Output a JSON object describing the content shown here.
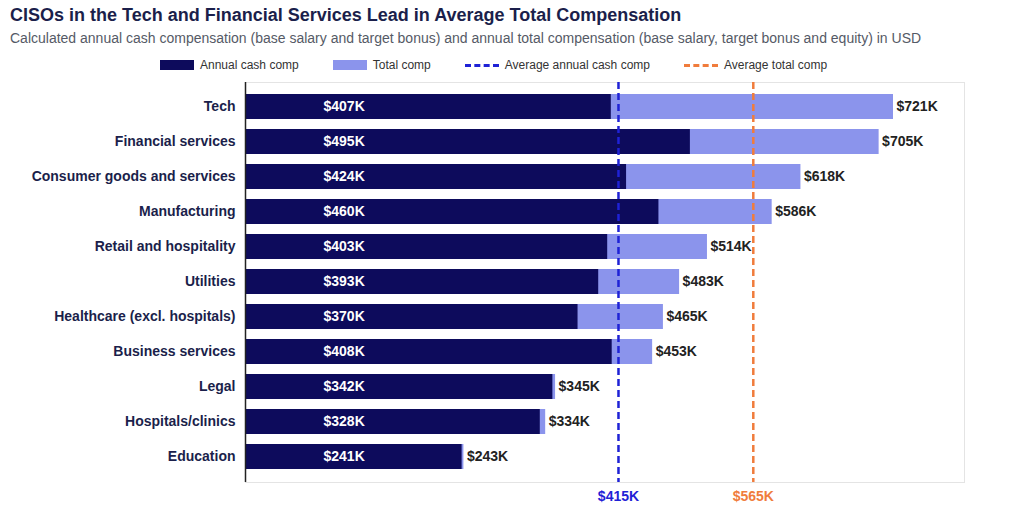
{
  "chart_data": {
    "type": "bar",
    "title": "CISOs in the Tech and Financial Services Lead in Average Total Compensation",
    "subtitle": "Calculated annual cash compensation (base salary and target bonus) and annual total compensation (base salary, target bonus and equity) in USD",
    "orientation": "horizontal",
    "stacked": false,
    "data_labels": true,
    "tick_labels": "y",
    "legend": "top",
    "categories": [
      "Tech",
      "Financial services",
      "Consumer goods and services",
      "Manufacturing",
      "Retail and hospitality",
      "Utilities",
      "Healthcare (excl. hospitals)",
      "Business services",
      "Legal",
      "Hospitals/clinics",
      "Education"
    ],
    "xlim": [
      0,
      800
    ],
    "series": [
      {
        "name": "Annual cash comp",
        "color": "#0d0b5c",
        "values": [
          407,
          495,
          424,
          460,
          403,
          393,
          370,
          408,
          342,
          328,
          241
        ],
        "value_labels": [
          "$407K",
          "$495K",
          "$424K",
          "$460K",
          "$403K",
          "$393K",
          "$370K",
          "$408K",
          "$342K",
          "$328K",
          "$241K"
        ]
      },
      {
        "name": "Total comp",
        "color": "#8b94ec",
        "values": [
          721,
          705,
          618,
          586,
          514,
          483,
          465,
          453,
          345,
          334,
          243
        ],
        "value_labels": [
          "$721K",
          "$705K",
          "$618K",
          "$586K",
          "$514K",
          "$483K",
          "$465K",
          "$453K",
          "$345K",
          "$334K",
          "$243K"
        ]
      }
    ],
    "reference_lines": [
      {
        "name": "Average annual cash comp",
        "value": 415,
        "label": "$415K",
        "color": "#1f22d6",
        "line_style": "dashed"
      },
      {
        "name": "Average total comp",
        "value": 565,
        "label": "$565K",
        "color": "#f07c3c",
        "line_style": "dashed"
      }
    ]
  }
}
